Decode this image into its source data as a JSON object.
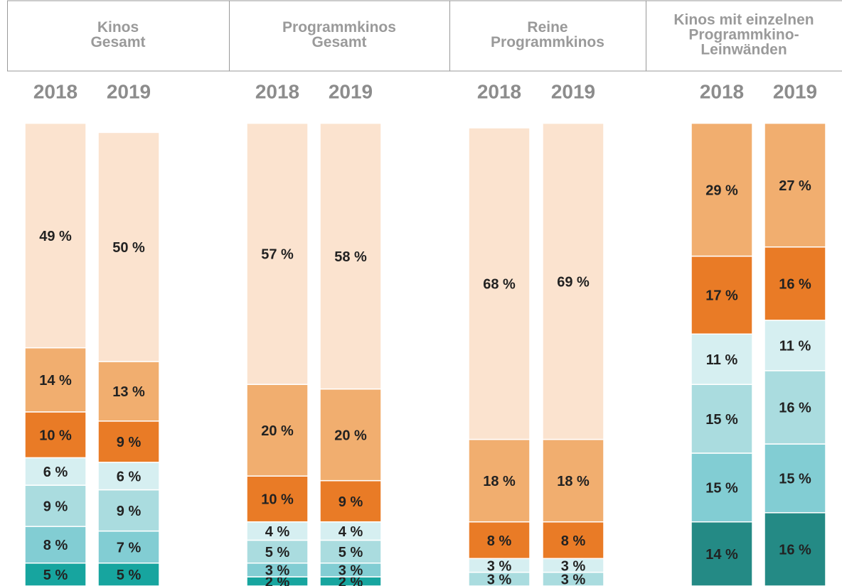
{
  "chart_data": [
    {
      "type": "bar",
      "stacked": true,
      "title": [
        "Kinos",
        "Gesamt"
      ],
      "categories": [
        "2018",
        "2019"
      ],
      "series": [
        {
          "color": "#17a59f",
          "values": [
            5,
            5
          ],
          "value_labels": [
            "5 %",
            "5 %"
          ]
        },
        {
          "color": "#82cdd3",
          "values": [
            8,
            7
          ],
          "value_labels": [
            "8 %",
            "7 %"
          ]
        },
        {
          "color": "#aadcdf",
          "values": [
            9,
            9
          ],
          "value_labels": [
            "9 %",
            "9 %"
          ]
        },
        {
          "color": "#d6eff1",
          "values": [
            6,
            6
          ],
          "value_labels": [
            "6 %",
            "6 %"
          ]
        },
        {
          "color": "#e97b26",
          "values": [
            10,
            9
          ],
          "value_labels": [
            "10 %",
            "9 %"
          ]
        },
        {
          "color": "#f1ae6f",
          "values": [
            14,
            13
          ],
          "value_labels": [
            "14 %",
            "13 %"
          ]
        },
        {
          "color": "#fbe3cf",
          "values": [
            49,
            50
          ],
          "value_labels": [
            "49 %",
            "50 %"
          ]
        }
      ]
    },
    {
      "type": "bar",
      "stacked": true,
      "title": [
        "Programmkinos",
        "Gesamt"
      ],
      "categories": [
        "2018",
        "2019"
      ],
      "series": [
        {
          "color": "#17a59f",
          "values": [
            2,
            2
          ],
          "value_labels": [
            "2 %",
            "2 %"
          ]
        },
        {
          "color": "#82cdd3",
          "values": [
            3,
            3
          ],
          "value_labels": [
            "3 %",
            "3 %"
          ]
        },
        {
          "color": "#aadcdf",
          "values": [
            5,
            5
          ],
          "value_labels": [
            "5 %",
            "5 %"
          ]
        },
        {
          "color": "#d6eff1",
          "values": [
            4,
            4
          ],
          "value_labels": [
            "4 %",
            "4 %"
          ]
        },
        {
          "color": "#e97b26",
          "values": [
            10,
            9
          ],
          "value_labels": [
            "10 %",
            "9 %"
          ]
        },
        {
          "color": "#f1ae6f",
          "values": [
            20,
            20
          ],
          "value_labels": [
            "20 %",
            "20 %"
          ]
        },
        {
          "color": "#fbe3cf",
          "values": [
            57,
            58
          ],
          "value_labels": [
            "57 %",
            "58 %"
          ]
        }
      ]
    },
    {
      "type": "bar",
      "stacked": true,
      "title": [
        "Reine",
        "Programmkinos"
      ],
      "categories": [
        "2018",
        "2019"
      ],
      "series": [
        {
          "color": "#17a59f",
          "values": [
            0,
            0
          ],
          "value_labels": [
            null,
            null
          ]
        },
        {
          "color": "#82cdd3",
          "values": [
            0,
            0
          ],
          "value_labels": [
            null,
            null
          ]
        },
        {
          "color": "#aadcdf",
          "values": [
            3,
            3
          ],
          "value_labels": [
            "3 %",
            "3 %"
          ]
        },
        {
          "color": "#d6eff1",
          "values": [
            3,
            3
          ],
          "value_labels": [
            "3 %",
            "3 %"
          ]
        },
        {
          "color": "#e97b26",
          "values": [
            8,
            8
          ],
          "value_labels": [
            "8 %",
            "8 %"
          ]
        },
        {
          "color": "#f1ae6f",
          "values": [
            18,
            18
          ],
          "value_labels": [
            "18 %",
            "18 %"
          ]
        },
        {
          "color": "#fbe3cf",
          "values": [
            68,
            69
          ],
          "value_labels": [
            "68 %",
            "69 %"
          ]
        }
      ]
    },
    {
      "type": "bar",
      "stacked": true,
      "title": [
        "Kinos mit einzelnen",
        "Programmkino-",
        "Leinwänden"
      ],
      "categories": [
        "2018",
        "2019"
      ],
      "series": [
        {
          "color": "#248a85",
          "values": [
            14,
            16
          ],
          "value_labels": [
            "14 %",
            "16 %"
          ]
        },
        {
          "color": "#82cdd3",
          "values": [
            15,
            15
          ],
          "value_labels": [
            "15 %",
            "15 %"
          ]
        },
        {
          "color": "#aadcdf",
          "values": [
            15,
            16
          ],
          "value_labels": [
            "15 %",
            "16 %"
          ]
        },
        {
          "color": "#d6eff1",
          "values": [
            11,
            11
          ],
          "value_labels": [
            "11 %",
            "11 %"
          ]
        },
        {
          "color": "#e97b26",
          "values": [
            17,
            16
          ],
          "value_labels": [
            "17 %",
            "16 %"
          ]
        },
        {
          "color": "#f1ae6f",
          "values": [
            29,
            27
          ],
          "value_labels": [
            "29 %",
            "27 %"
          ]
        },
        {
          "color": "#fbe3cf",
          "values": [
            0,
            0
          ],
          "value_labels": [
            null,
            null
          ]
        }
      ]
    }
  ]
}
